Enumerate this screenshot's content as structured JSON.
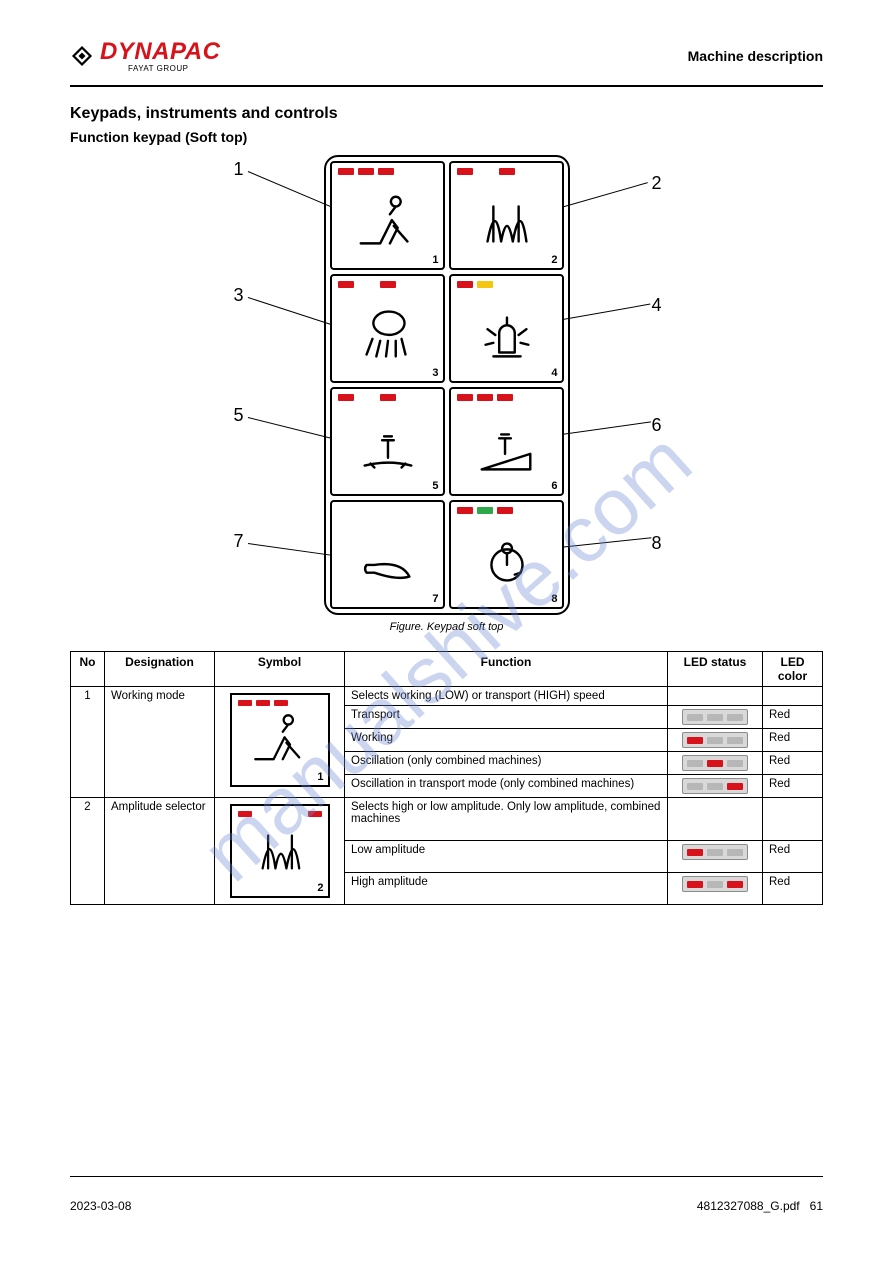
{
  "brand": {
    "name": "DYNAPAC",
    "sub": "FAYAT GROUP",
    "color": "#d8121a"
  },
  "header": {
    "right_title": "Machine description",
    "section": "Keypads, instruments and controls",
    "sub": "Function keypad (Soft top)"
  },
  "colors": {
    "led_red": "#d8121a",
    "led_yellow": "#f5c60f",
    "led_green": "#2fa84a",
    "led_off": "#b7b7b7",
    "pill_bg": "#d9d9d9",
    "pill_border": "#8c8c8c",
    "watermark": "#6f8ad6"
  },
  "keypad": {
    "callouts": [
      "1",
      "2",
      "3",
      "4",
      "5",
      "6",
      "7",
      "8"
    ],
    "keys": [
      {
        "n": 1,
        "cell": "1",
        "leds": [
          "red",
          "red",
          "red"
        ],
        "icon": "work-mode"
      },
      {
        "n": 2,
        "cell": "2",
        "leds": [
          "red",
          "gap",
          "red"
        ],
        "icon": "amplitude"
      },
      {
        "n": 3,
        "cell": "3",
        "leds": [
          "red",
          "gap",
          "red"
        ],
        "icon": "sprinkler"
      },
      {
        "n": 4,
        "cell": "4",
        "leds": [
          "red",
          "yellow"
        ],
        "icon": "beacon"
      },
      {
        "n": 5,
        "cell": "5",
        "leds": [
          "red",
          "gap",
          "red"
        ],
        "icon": "vib-manual"
      },
      {
        "n": 6,
        "cell": "6",
        "leds": [
          "red",
          "red",
          "red"
        ],
        "icon": "vib-auto"
      },
      {
        "n": 7,
        "cell": "7",
        "leds": [],
        "icon": "horn"
      },
      {
        "n": 8,
        "cell": "8",
        "leds": [
          "red",
          "green",
          "red"
        ],
        "icon": "lock"
      }
    ],
    "caption": "Figure. Keypad soft top"
  },
  "table": {
    "cols": [
      "No",
      "Designation",
      "Symbol",
      "Function",
      "LED status",
      "LED color"
    ],
    "rows": [
      {
        "no": "1",
        "designation": "Working mode",
        "icon_key": 1,
        "funcs": [
          {
            "text": "Selects working (LOW) or transport (HIGH) speed",
            "status": null,
            "color": ""
          },
          {
            "text": "Transport",
            "status": [
              0,
              0,
              0
            ],
            "color": "Red"
          },
          {
            "text": "Working",
            "status": [
              1,
              0,
              0
            ],
            "color": "Red"
          },
          {
            "text": "Oscillation (only combined machines)",
            "status": [
              0,
              1,
              0
            ],
            "color": "Red"
          },
          {
            "text": "Oscillation in transport mode (only combined machines)",
            "status": [
              0,
              0,
              1
            ],
            "color": "Red"
          }
        ]
      },
      {
        "no": "2",
        "designation": "Amplitude selector",
        "icon_key": 2,
        "funcs": [
          {
            "text": "Selects high or low amplitude. Only low amplitude, combined machines",
            "status": null,
            "color": ""
          },
          {
            "text": "Low amplitude",
            "status": [
              1,
              0,
              0
            ],
            "color": "Red"
          },
          {
            "text": "High amplitude",
            "status": [
              1,
              0,
              1
            ],
            "color": "Red"
          }
        ]
      }
    ]
  },
  "footer": {
    "left": "2023-03-08",
    "right": "4812327088_G.pdf",
    "page": "61"
  }
}
